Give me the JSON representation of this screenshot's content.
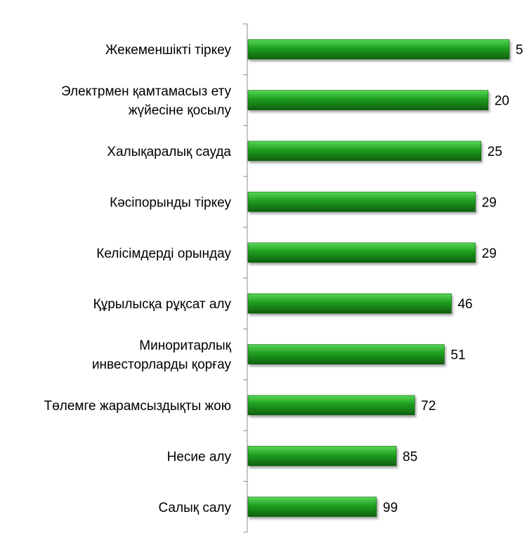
{
  "chart_data": {
    "type": "bar",
    "orientation": "horizontal",
    "categories": [
      [
        "Жекеменшікті тіркеу"
      ],
      [
        "Электрмен қамтамасыз ету",
        "жүйесіне қосылу"
      ],
      [
        "Халықаралық сауда"
      ],
      [
        "Кәсіпорынды тіркеу"
      ],
      [
        "Келісімдерді орындау"
      ],
      [
        "Құрылысқа рұқсат алу"
      ],
      [
        "Миноритарлық",
        "инвесторларды қорғау"
      ],
      [
        "Төлемге жарамсыздықты жою"
      ],
      [
        "Несие алу"
      ],
      [
        "Салық салу"
      ]
    ],
    "values": [
      5,
      20,
      25,
      29,
      29,
      46,
      51,
      72,
      85,
      99
    ],
    "title": "",
    "xlabel": "",
    "ylabel": "",
    "grid": false,
    "legend": "none",
    "data_labels": true,
    "colors": {
      "bar": "#1e9e1e",
      "bar_light": "#58d858",
      "bar_edge": "#0f5f0f",
      "axis": "#8c8c8c"
    }
  }
}
